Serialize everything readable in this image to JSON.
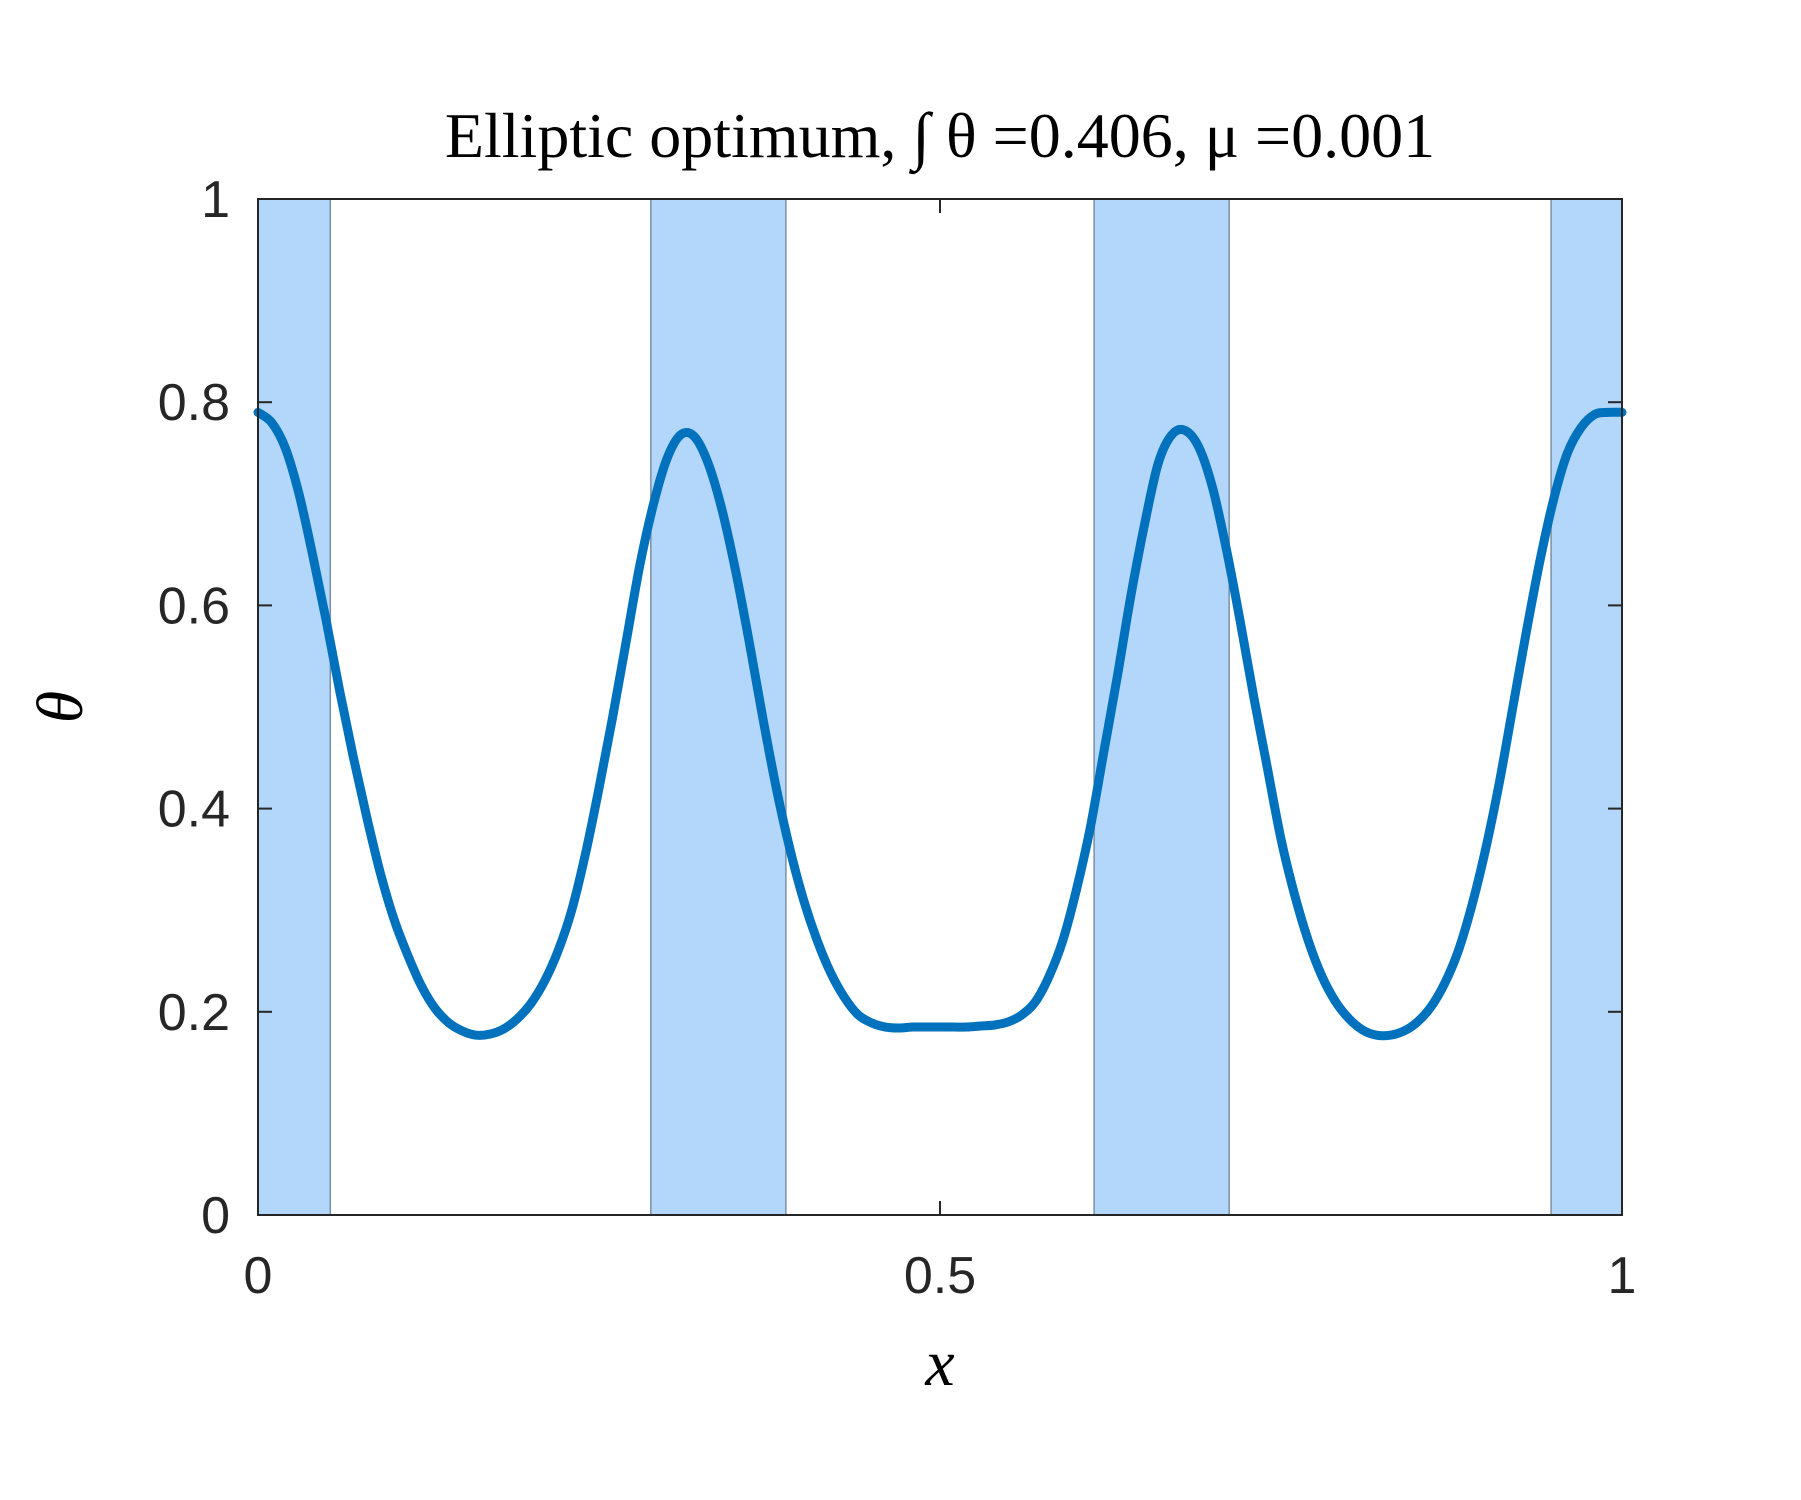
{
  "chart_data": {
    "type": "line",
    "title": "Elliptic optimum, ∫ θ =0.406, μ =0.001",
    "xlabel": "x",
    "ylabel": "θ",
    "xlim": [
      0,
      1
    ],
    "ylim": [
      0,
      1
    ],
    "xticks": [
      0,
      0.5,
      1
    ],
    "xtick_labels": [
      "0",
      "0.5",
      "1"
    ],
    "yticks": [
      0,
      0.2,
      0.4,
      0.6,
      0.8,
      1
    ],
    "ytick_labels": [
      "0",
      "0.2",
      "0.4",
      "0.6",
      "0.8",
      "1"
    ],
    "grid": false,
    "box": true,
    "shaded_regions": [
      {
        "x": [
          0.0,
          0.053
        ]
      },
      {
        "x": [
          0.288,
          0.387
        ]
      },
      {
        "x": [
          0.613,
          0.712
        ]
      },
      {
        "x": [
          0.948,
          1.0
        ]
      }
    ],
    "series": [
      {
        "color": "#0072bd",
        "x": [
          0.0,
          0.01,
          0.02,
          0.03,
          0.04,
          0.05,
          0.06,
          0.07,
          0.08,
          0.09,
          0.1,
          0.11,
          0.12,
          0.13,
          0.14,
          0.15,
          0.16,
          0.17,
          0.18,
          0.19,
          0.2,
          0.21,
          0.22,
          0.23,
          0.24,
          0.25,
          0.26,
          0.27,
          0.28,
          0.29,
          0.3,
          0.31,
          0.32,
          0.33,
          0.34,
          0.35,
          0.36,
          0.37,
          0.38,
          0.39,
          0.4,
          0.41,
          0.42,
          0.43,
          0.44,
          0.45,
          0.46,
          0.47,
          0.48,
          0.49,
          0.5,
          0.51,
          0.52,
          0.53,
          0.54,
          0.55,
          0.56,
          0.57,
          0.58,
          0.59,
          0.6,
          0.61,
          0.62,
          0.63,
          0.64,
          0.65,
          0.66,
          0.67,
          0.68,
          0.69,
          0.7,
          0.71,
          0.72,
          0.73,
          0.74,
          0.75,
          0.76,
          0.77,
          0.78,
          0.79,
          0.8,
          0.81,
          0.82,
          0.83,
          0.84,
          0.85,
          0.86,
          0.87,
          0.88,
          0.89,
          0.9,
          0.91,
          0.92,
          0.93,
          0.94,
          0.95,
          0.96,
          0.97,
          0.98,
          0.99,
          1.0
        ],
        "y": [
          0.79,
          0.78,
          0.755,
          0.71,
          0.65,
          0.585,
          0.515,
          0.45,
          0.39,
          0.335,
          0.29,
          0.255,
          0.225,
          0.203,
          0.189,
          0.181,
          0.177,
          0.178,
          0.183,
          0.193,
          0.208,
          0.23,
          0.26,
          0.3,
          0.355,
          0.42,
          0.49,
          0.565,
          0.64,
          0.7,
          0.745,
          0.768,
          0.766,
          0.74,
          0.695,
          0.635,
          0.565,
          0.49,
          0.42,
          0.36,
          0.31,
          0.27,
          0.238,
          0.214,
          0.197,
          0.189,
          0.185,
          0.184,
          0.185,
          0.185,
          0.185,
          0.185,
          0.185,
          0.186,
          0.187,
          0.19,
          0.197,
          0.21,
          0.235,
          0.27,
          0.32,
          0.38,
          0.455,
          0.53,
          0.61,
          0.68,
          0.74,
          0.768,
          0.772,
          0.755,
          0.715,
          0.655,
          0.585,
          0.51,
          0.44,
          0.37,
          0.315,
          0.27,
          0.235,
          0.21,
          0.193,
          0.182,
          0.177,
          0.177,
          0.181,
          0.19,
          0.205,
          0.228,
          0.26,
          0.305,
          0.36,
          0.425,
          0.5,
          0.575,
          0.645,
          0.705,
          0.75,
          0.775,
          0.788,
          0.79,
          0.79
        ]
      }
    ]
  }
}
